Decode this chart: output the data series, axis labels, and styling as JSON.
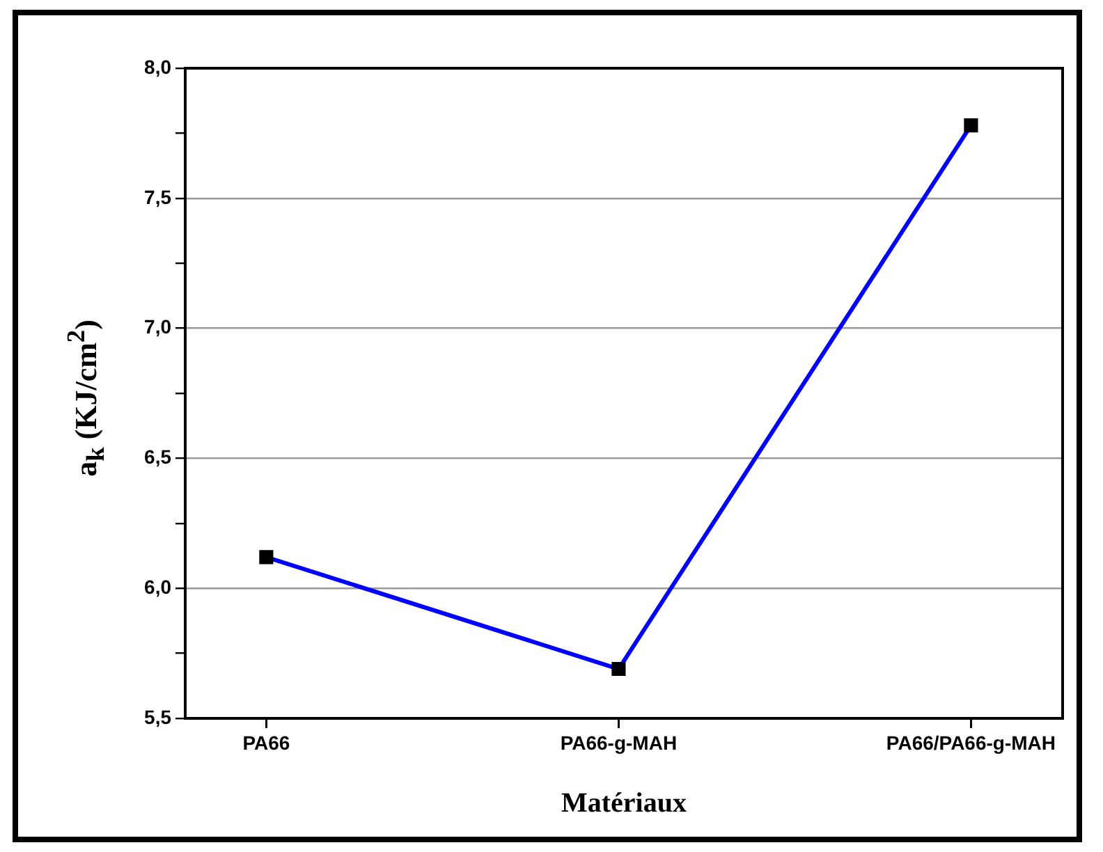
{
  "chart_data": {
    "type": "line",
    "xlabel": "Matériaux",
    "ylabel": "a$_{k}$ (KJ/cm$^{2}$)",
    "categories": [
      "PA66",
      "PA66-g-MAH",
      "PA66/PA66-g-MAH"
    ],
    "series": [
      {
        "color": "#0000ff",
        "values": [
          6.12,
          5.69,
          7.78
        ]
      }
    ],
    "ylim": [
      5.5,
      8.0
    ],
    "yticks": [
      {
        "value": 5.5,
        "label": "5,5"
      },
      {
        "value": 5.75,
        "label": null
      },
      {
        "value": 6.0,
        "label": "6,0"
      },
      {
        "value": 6.25,
        "label": null
      },
      {
        "value": 6.5,
        "label": "6,5"
      },
      {
        "value": 6.75,
        "label": null
      },
      {
        "value": 7.0,
        "label": "7,0"
      },
      {
        "value": 7.25,
        "label": null
      },
      {
        "value": 7.5,
        "label": "7,5"
      },
      {
        "value": 7.75,
        "label": null
      },
      {
        "value": 8.0,
        "label": "8,0"
      }
    ],
    "grid": "y",
    "marker": "square",
    "line_style": "solid"
  }
}
